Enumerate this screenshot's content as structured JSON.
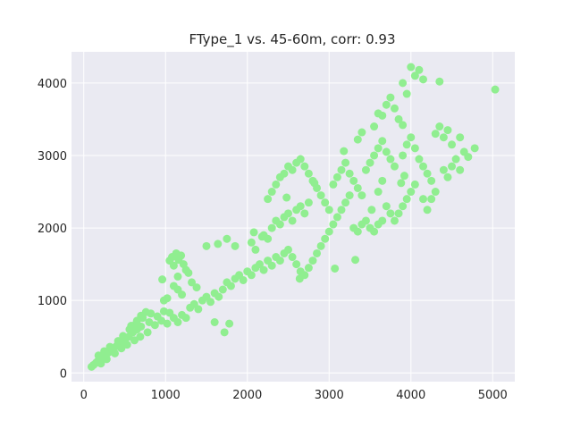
{
  "chart_data": {
    "type": "scatter",
    "title": "FType_1 vs. 45-60m, corr: 0.93",
    "xlabel": "",
    "ylabel": "",
    "xlim": [
      -150,
      5270
    ],
    "ylim": [
      -120,
      4430
    ],
    "xticks": [
      0,
      1000,
      2000,
      3000,
      4000,
      5000
    ],
    "yticks": [
      0,
      1000,
      2000,
      3000,
      4000
    ],
    "xtick_labels": [
      "0",
      "1000",
      "2000",
      "3000",
      "4000",
      "5000"
    ],
    "ytick_labels": [
      "0",
      "1000",
      "2000",
      "3000",
      "4000"
    ],
    "grid": true,
    "legend": "none",
    "colors": {
      "background": "#eaeaf2",
      "grid": "#ffffff",
      "marker": "#90ee90",
      "text": "#262626"
    },
    "series": [
      {
        "values": [
          [
            95,
            85
          ],
          [
            120,
            110
          ],
          [
            150,
            140
          ],
          [
            170,
            160
          ],
          [
            200,
            185
          ],
          [
            230,
            220
          ],
          [
            260,
            250
          ],
          [
            300,
            280
          ],
          [
            350,
            330
          ],
          [
            400,
            370
          ],
          [
            450,
            420
          ],
          [
            500,
            460
          ],
          [
            550,
            500
          ],
          [
            600,
            560
          ],
          [
            650,
            600
          ],
          [
            700,
            640
          ],
          [
            180,
            240
          ],
          [
            250,
            300
          ],
          [
            320,
            360
          ],
          [
            420,
            440
          ],
          [
            480,
            510
          ],
          [
            560,
            600
          ],
          [
            640,
            680
          ],
          [
            720,
            760
          ],
          [
            210,
            130
          ],
          [
            280,
            190
          ],
          [
            380,
            270
          ],
          [
            460,
            340
          ],
          [
            530,
            390
          ],
          [
            620,
            450
          ],
          [
            690,
            500
          ],
          [
            780,
            560
          ],
          [
            580,
            650
          ],
          [
            650,
            720
          ],
          [
            700,
            790
          ],
          [
            760,
            840
          ],
          [
            820,
            820
          ],
          [
            900,
            780
          ],
          [
            980,
            850
          ],
          [
            1050,
            830
          ],
          [
            800,
            700
          ],
          [
            870,
            660
          ],
          [
            950,
            720
          ],
          [
            1020,
            680
          ],
          [
            1100,
            760
          ],
          [
            1150,
            700
          ],
          [
            1200,
            800
          ],
          [
            1250,
            760
          ],
          [
            1300,
            900
          ],
          [
            1350,
            950
          ],
          [
            1400,
            880
          ],
          [
            1450,
            1000
          ],
          [
            1500,
            1050
          ],
          [
            1550,
            980
          ],
          [
            1600,
            1100
          ],
          [
            1650,
            1050
          ],
          [
            1050,
            1550
          ],
          [
            1080,
            1600
          ],
          [
            1100,
            1480
          ],
          [
            1130,
            1650
          ],
          [
            1160,
            1560
          ],
          [
            1190,
            1620
          ],
          [
            1220,
            1500
          ],
          [
            1250,
            1420
          ],
          [
            1280,
            1380
          ],
          [
            1100,
            1200
          ],
          [
            1020,
            1030
          ],
          [
            980,
            1000
          ],
          [
            1150,
            1150
          ],
          [
            1200,
            1080
          ],
          [
            1320,
            1250
          ],
          [
            1380,
            1180
          ],
          [
            1700,
            1150
          ],
          [
            1750,
            1250
          ],
          [
            1800,
            1200
          ],
          [
            1850,
            1300
          ],
          [
            1900,
            1350
          ],
          [
            1950,
            1280
          ],
          [
            2000,
            1400
          ],
          [
            2050,
            1350
          ],
          [
            2100,
            1450
          ],
          [
            2150,
            1500
          ],
          [
            2200,
            1420
          ],
          [
            2250,
            1550
          ],
          [
            2300,
            1480
          ],
          [
            2350,
            1600
          ],
          [
            2400,
            1550
          ],
          [
            2450,
            1650
          ],
          [
            1750,
            1850
          ],
          [
            1850,
            1750
          ],
          [
            2050,
            1800
          ],
          [
            2100,
            1700
          ],
          [
            2200,
            1900
          ],
          [
            2250,
            1850
          ],
          [
            2300,
            2000
          ],
          [
            2350,
            2100
          ],
          [
            2400,
            2050
          ],
          [
            2450,
            2150
          ],
          [
            2500,
            2200
          ],
          [
            2550,
            2100
          ],
          [
            2600,
            2250
          ],
          [
            2650,
            2300
          ],
          [
            2700,
            2200
          ],
          [
            2750,
            2350
          ],
          [
            2250,
            2400
          ],
          [
            2300,
            2500
          ],
          [
            2350,
            2600
          ],
          [
            2400,
            2700
          ],
          [
            2450,
            2750
          ],
          [
            2500,
            2850
          ],
          [
            2550,
            2800
          ],
          [
            2600,
            2900
          ],
          [
            2650,
            2950
          ],
          [
            2700,
            2850
          ],
          [
            2750,
            2750
          ],
          [
            2800,
            2650
          ],
          [
            2850,
            2550
          ],
          [
            2900,
            2450
          ],
          [
            2950,
            2350
          ],
          [
            3000,
            2250
          ],
          [
            2500,
            1700
          ],
          [
            2550,
            1600
          ],
          [
            2600,
            1500
          ],
          [
            2650,
            1400
          ],
          [
            2700,
            1350
          ],
          [
            2750,
            1450
          ],
          [
            2800,
            1550
          ],
          [
            2850,
            1650
          ],
          [
            2900,
            1750
          ],
          [
            2950,
            1850
          ],
          [
            3000,
            1950
          ],
          [
            3050,
            2050
          ],
          [
            3100,
            2150
          ],
          [
            3150,
            2250
          ],
          [
            3200,
            2350
          ],
          [
            3250,
            2450
          ],
          [
            3050,
            2600
          ],
          [
            3100,
            2700
          ],
          [
            3150,
            2800
          ],
          [
            3200,
            2900
          ],
          [
            3250,
            2750
          ],
          [
            3300,
            2650
          ],
          [
            3350,
            2550
          ],
          [
            3400,
            2450
          ],
          [
            3300,
            2000
          ],
          [
            3350,
            1950
          ],
          [
            3400,
            2050
          ],
          [
            3450,
            2100
          ],
          [
            3500,
            2000
          ],
          [
            3550,
            1950
          ],
          [
            3600,
            2050
          ],
          [
            3650,
            2100
          ],
          [
            3450,
            2800
          ],
          [
            3500,
            2900
          ],
          [
            3550,
            3000
          ],
          [
            3600,
            3100
          ],
          [
            3650,
            3200
          ],
          [
            3700,
            3050
          ],
          [
            3750,
            2950
          ],
          [
            3800,
            2850
          ],
          [
            3550,
            3400
          ],
          [
            3600,
            3580
          ],
          [
            3650,
            3550
          ],
          [
            3700,
            3700
          ],
          [
            3750,
            3800
          ],
          [
            3800,
            3650
          ],
          [
            3850,
            3500
          ],
          [
            3900,
            3420
          ],
          [
            3700,
            2300
          ],
          [
            3750,
            2200
          ],
          [
            3800,
            2100
          ],
          [
            3850,
            2200
          ],
          [
            3900,
            2300
          ],
          [
            3950,
            2400
          ],
          [
            4000,
            2500
          ],
          [
            4050,
            2600
          ],
          [
            3900,
            3000
          ],
          [
            3950,
            3150
          ],
          [
            4000,
            3250
          ],
          [
            4050,
            3100
          ],
          [
            4100,
            2950
          ],
          [
            4150,
            2850
          ],
          [
            4200,
            2750
          ],
          [
            4250,
            2650
          ],
          [
            4000,
            4220
          ],
          [
            4050,
            4100
          ],
          [
            4100,
            4180
          ],
          [
            4150,
            4050
          ],
          [
            3900,
            4000
          ],
          [
            3950,
            3850
          ],
          [
            4350,
            4020
          ],
          [
            5030,
            3910
          ],
          [
            4300,
            3300
          ],
          [
            4350,
            3400
          ],
          [
            4400,
            3250
          ],
          [
            4450,
            3350
          ],
          [
            4500,
            3150
          ],
          [
            4550,
            2950
          ],
          [
            4600,
            2800
          ],
          [
            4650,
            3050
          ],
          [
            4400,
            2800
          ],
          [
            4450,
            2700
          ],
          [
            4500,
            2850
          ],
          [
            4700,
            2980
          ],
          [
            4780,
            3100
          ],
          [
            4600,
            3250
          ],
          [
            4300,
            2500
          ],
          [
            4250,
            2400
          ],
          [
            1600,
            700
          ],
          [
            1720,
            560
          ],
          [
            1780,
            680
          ],
          [
            960,
            1290
          ],
          [
            1150,
            1330
          ],
          [
            1500,
            1750
          ],
          [
            3070,
            1440
          ],
          [
            2640,
            1300
          ],
          [
            3320,
            1560
          ],
          [
            1640,
            1780
          ],
          [
            2080,
            1940
          ],
          [
            2180,
            1880
          ],
          [
            2480,
            2420
          ],
          [
            2820,
            2620
          ],
          [
            3180,
            3060
          ],
          [
            3350,
            3220
          ],
          [
            3400,
            3320
          ],
          [
            3600,
            2500
          ],
          [
            3650,
            2650
          ],
          [
            3520,
            2250
          ],
          [
            3880,
            2620
          ],
          [
            3920,
            2720
          ],
          [
            4150,
            2400
          ],
          [
            4200,
            2250
          ]
        ]
      }
    ]
  }
}
